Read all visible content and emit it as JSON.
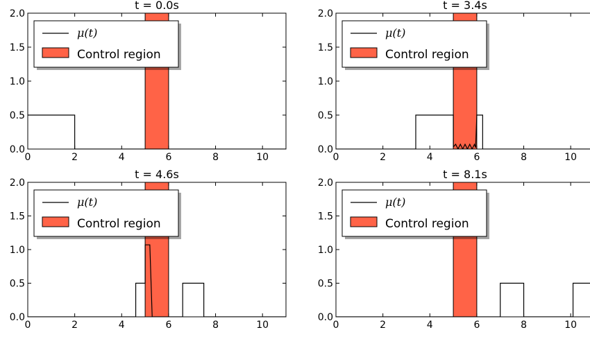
{
  "chart_data": [
    {
      "type": "line",
      "title": "t = 0.0s",
      "xlabel": "",
      "ylabel": "",
      "xlim": [
        0,
        11
      ],
      "ylim": [
        0,
        2.0
      ],
      "xticks": [
        0,
        2,
        4,
        6,
        8,
        10
      ],
      "yticks": [
        0.0,
        0.5,
        1.0,
        1.5,
        2.0
      ],
      "xtick_labels": [
        "0",
        "2",
        "4",
        "6",
        "8",
        "10"
      ],
      "ytick_labels": [
        "0.0",
        "0.5",
        "1.0",
        "1.5",
        "2.0"
      ],
      "legend_position": "upper-left",
      "legend": [
        "$\\mu(t)$",
        "Control region"
      ],
      "control_region": {
        "x_start": 5,
        "x_end": 6,
        "label": "Control region",
        "color": "#ff6347"
      },
      "series": [
        {
          "name": "$\\mu(t)$",
          "color": "#000000",
          "x": [
            0,
            2,
            2,
            11
          ],
          "y": [
            0.5,
            0.5,
            0,
            0
          ]
        }
      ]
    },
    {
      "type": "line",
      "title": "t = 3.4s",
      "xlabel": "",
      "ylabel": "",
      "xlim": [
        0,
        11
      ],
      "ylim": [
        0,
        2.0
      ],
      "xticks": [
        0,
        2,
        4,
        6,
        8,
        10
      ],
      "yticks": [
        0.0,
        0.5,
        1.0,
        1.5,
        2.0
      ],
      "xtick_labels": [
        "0",
        "2",
        "4",
        "6",
        "8",
        "10"
      ],
      "ytick_labels": [
        "0.0",
        "0.5",
        "1.0",
        "1.5",
        "2.0"
      ],
      "legend_position": "upper-left",
      "legend": [
        "$\\mu(t)$",
        "Control region"
      ],
      "control_region": {
        "x_start": 5,
        "x_end": 6,
        "label": "Control region",
        "color": "#ff6347"
      },
      "series": [
        {
          "name": "$\\mu(t)$",
          "color": "#000000",
          "x": [
            0,
            3.4,
            3.4,
            5.0,
            5.0,
            5.1,
            5.2,
            5.3,
            5.4,
            5.5,
            5.6,
            5.7,
            5.8,
            5.9,
            5.95,
            6.0,
            6.0,
            6.25,
            6.25,
            11
          ],
          "y": [
            0,
            0,
            0.5,
            0.5,
            0.03,
            0.07,
            0.0,
            0.07,
            0.0,
            0.07,
            0.0,
            0.07,
            0.0,
            0.07,
            0.02,
            0.5,
            0.5,
            0.5,
            0,
            0
          ]
        }
      ]
    },
    {
      "type": "line",
      "title": "t = 4.6s",
      "xlabel": "",
      "ylabel": "",
      "xlim": [
        0,
        11
      ],
      "ylim": [
        0,
        2.0
      ],
      "xticks": [
        0,
        2,
        4,
        6,
        8,
        10
      ],
      "yticks": [
        0.0,
        0.5,
        1.0,
        1.5,
        2.0
      ],
      "xtick_labels": [
        "0",
        "2",
        "4",
        "6",
        "8",
        "10"
      ],
      "ytick_labels": [
        "0.0",
        "0.5",
        "1.0",
        "1.5",
        "2.0"
      ],
      "legend_position": "upper-left",
      "legend": [
        "$\\mu(t)$",
        "Control region"
      ],
      "control_region": {
        "x_start": 5,
        "x_end": 6,
        "label": "Control region",
        "color": "#ff6347"
      },
      "series": [
        {
          "name": "$\\mu(t)$",
          "color": "#000000",
          "x": [
            0,
            4.6,
            4.6,
            5.0,
            5.0,
            5.2,
            5.3,
            6.6,
            6.6,
            7.5,
            7.5,
            11
          ],
          "y": [
            0,
            0,
            0.5,
            0.5,
            1.07,
            1.07,
            0,
            0,
            0.5,
            0.5,
            0,
            0
          ]
        }
      ]
    },
    {
      "type": "line",
      "title": "t = 8.1s",
      "xlabel": "",
      "ylabel": "",
      "xlim": [
        0,
        11
      ],
      "ylim": [
        0,
        2.0
      ],
      "xticks": [
        0,
        2,
        4,
        6,
        8,
        10
      ],
      "yticks": [
        0.0,
        0.5,
        1.0,
        1.5,
        2.0
      ],
      "xtick_labels": [
        "0",
        "2",
        "4",
        "6",
        "8",
        "10"
      ],
      "ytick_labels": [
        "0.0",
        "0.5",
        "1.0",
        "1.5",
        "2.0"
      ],
      "legend_position": "upper-left",
      "legend": [
        "$\\mu(t)$",
        "Control region"
      ],
      "control_region": {
        "x_start": 5,
        "x_end": 6,
        "label": "Control region",
        "color": "#ff6347"
      },
      "series": [
        {
          "name": "$\\mu(t)$",
          "color": "#000000",
          "x": [
            0,
            7.0,
            7.0,
            8.0,
            8.0,
            10.1,
            10.1,
            11
          ],
          "y": [
            0,
            0,
            0.5,
            0.5,
            0,
            0,
            0.5,
            0.5
          ]
        }
      ]
    }
  ]
}
